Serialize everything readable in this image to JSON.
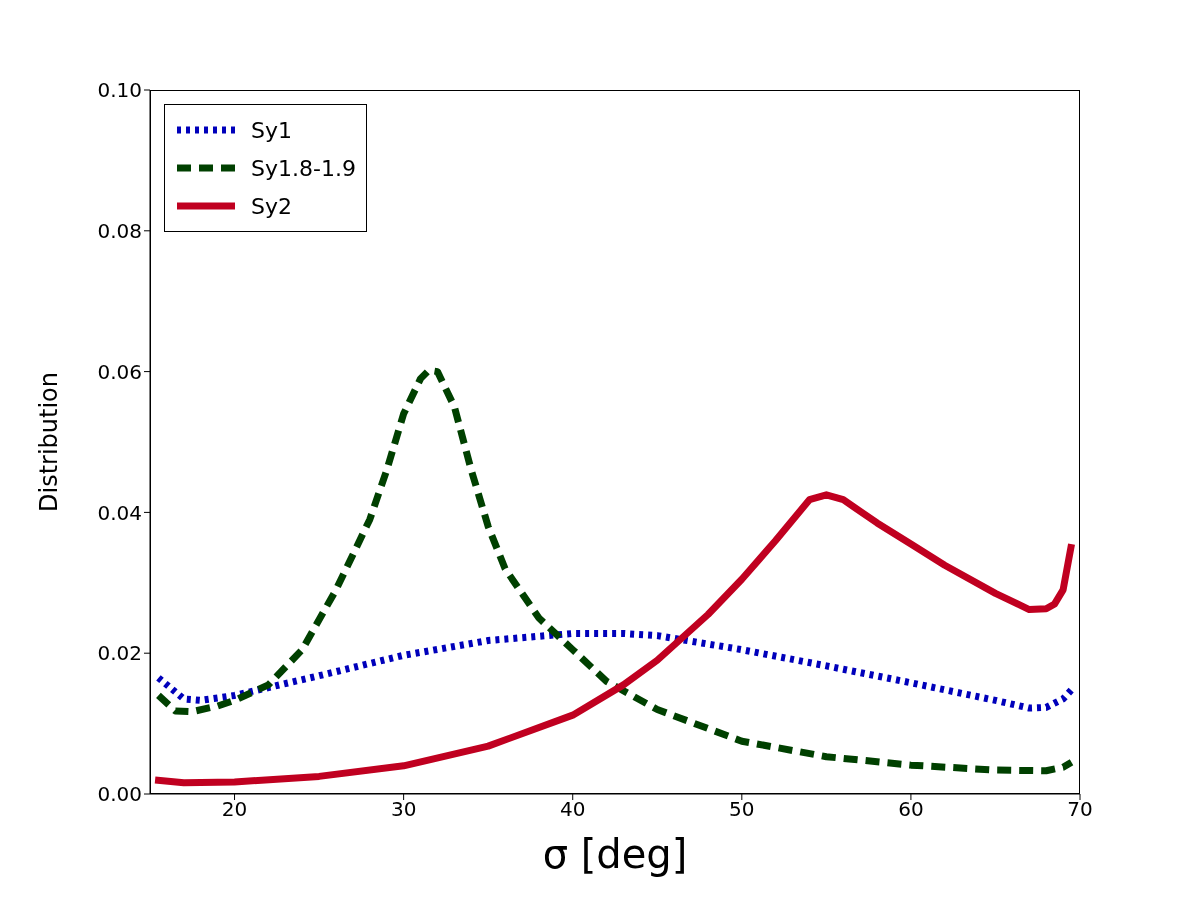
{
  "chart_data": {
    "type": "line",
    "xlabel": "σ [deg]",
    "ylabel": "Distribution",
    "xlim": [
      15,
      70
    ],
    "xticks": [
      20,
      30,
      40,
      50,
      60,
      70
    ],
    "ylim": [
      0,
      0.1
    ],
    "yticks": [
      {
        "value": 0,
        "label": "0.00"
      },
      {
        "value": 0.02,
        "label": "0.02"
      },
      {
        "value": 0.04,
        "label": "0.04"
      },
      {
        "value": 0.06,
        "label": "0.06"
      },
      {
        "value": 0.08,
        "label": "0.08"
      },
      {
        "value": 0.1,
        "label": "0.10"
      }
    ],
    "grid": false,
    "legend": "top left",
    "marker": "none",
    "series": [
      {
        "name": "Sy1",
        "color": "#0000bb",
        "line_style": "dotted",
        "x": [
          15.5,
          17,
          18,
          20,
          25,
          30,
          35,
          40,
          43,
          45,
          50,
          55,
          60,
          65,
          67,
          68,
          69,
          69.5
        ],
        "values": [
          0.0165,
          0.0135,
          0.0133,
          0.014,
          0.0168,
          0.0197,
          0.0218,
          0.0228,
          0.0228,
          0.0225,
          0.0205,
          0.0182,
          0.0158,
          0.0133,
          0.0122,
          0.0123,
          0.0135,
          0.0148
        ]
      },
      {
        "name": "Sy1.8-1.9",
        "color": "#004000",
        "line_style": "dashed",
        "x": [
          15.5,
          16.5,
          17.5,
          19,
          20,
          22,
          24,
          26,
          28,
          29,
          30,
          31,
          31.5,
          32,
          33,
          34,
          35,
          36,
          38,
          40,
          42,
          45,
          50,
          55,
          60,
          65,
          68,
          69,
          69.5
        ],
        "values": [
          0.014,
          0.0118,
          0.0117,
          0.0125,
          0.0133,
          0.0155,
          0.0205,
          0.029,
          0.039,
          0.046,
          0.054,
          0.059,
          0.0602,
          0.06,
          0.055,
          0.046,
          0.038,
          0.032,
          0.025,
          0.0205,
          0.016,
          0.012,
          0.0075,
          0.0053,
          0.0041,
          0.0034,
          0.0033,
          0.0038,
          0.0045
        ]
      },
      {
        "name": "Sy2",
        "color": "#c00020",
        "line_style": "solid",
        "x": [
          15.3,
          17,
          20,
          25,
          30,
          35,
          40,
          43,
          45,
          48,
          50,
          52,
          54,
          55,
          56,
          58,
          60,
          62,
          65,
          67,
          68,
          68.5,
          69,
          69.5
        ],
        "values": [
          0.002,
          0.0016,
          0.0017,
          0.0025,
          0.004,
          0.0068,
          0.0112,
          0.0155,
          0.019,
          0.0255,
          0.0305,
          0.036,
          0.0418,
          0.0425,
          0.0418,
          0.0385,
          0.0355,
          0.0325,
          0.0285,
          0.0262,
          0.0263,
          0.027,
          0.029,
          0.0355
        ]
      }
    ]
  }
}
